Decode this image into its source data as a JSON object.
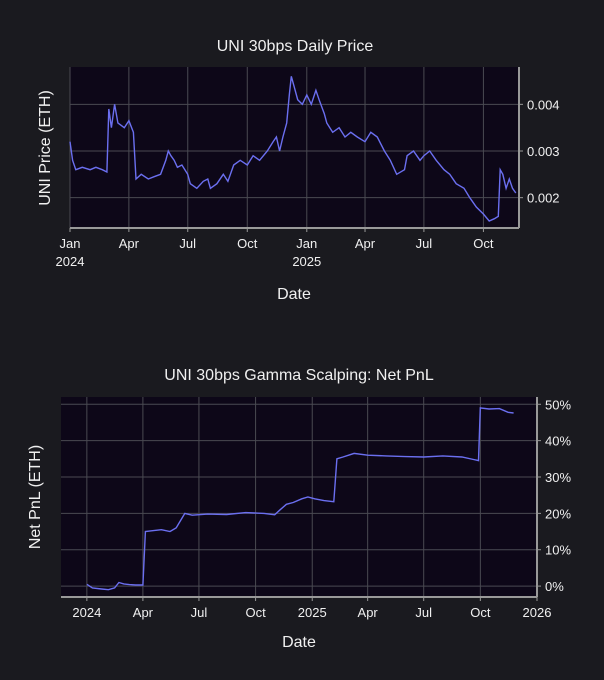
{
  "chart_data": [
    {
      "type": "line",
      "title": "UNI 30bps Daily Price",
      "xlabel": "Date",
      "ylabel": "UNI Price (ETH)",
      "x_tick_labels": [
        {
          "label": "Jan",
          "sub": "2024",
          "date": "2024-01-01"
        },
        {
          "label": "Apr",
          "sub": "",
          "date": "2024-04-01"
        },
        {
          "label": "Jul",
          "sub": "",
          "date": "2024-07-01"
        },
        {
          "label": "Oct",
          "sub": "",
          "date": "2024-10-01"
        },
        {
          "label": "Jan",
          "sub": "2025",
          "date": "2025-01-01"
        },
        {
          "label": "Apr",
          "sub": "",
          "date": "2025-04-01"
        },
        {
          "label": "Jul",
          "sub": "",
          "date": "2025-07-01"
        },
        {
          "label": "Oct",
          "sub": "",
          "date": "2025-10-01"
        }
      ],
      "y_ticks": [
        0.002,
        0.003,
        0.004
      ],
      "y_tick_labels": [
        "0.002",
        "0.003",
        "0.004"
      ],
      "xlim": [
        "2024-01-01",
        "2025-11-25"
      ],
      "ylim": [
        0.00135,
        0.0048
      ],
      "grid": true,
      "series": [
        {
          "color": "#6b6ff0",
          "points": [
            [
              "2024-01-01",
              0.0032
            ],
            [
              "2024-01-05",
              0.0028
            ],
            [
              "2024-01-10",
              0.0026
            ],
            [
              "2024-01-20",
              0.00265
            ],
            [
              "2024-02-01",
              0.0026
            ],
            [
              "2024-02-10",
              0.00265
            ],
            [
              "2024-02-20",
              0.0026
            ],
            [
              "2024-02-27",
              0.00255
            ],
            [
              "2024-03-01",
              0.0039
            ],
            [
              "2024-03-05",
              0.0035
            ],
            [
              "2024-03-10",
              0.004
            ],
            [
              "2024-03-15",
              0.0036
            ],
            [
              "2024-03-25",
              0.0035
            ],
            [
              "2024-04-01",
              0.00365
            ],
            [
              "2024-04-08",
              0.0034
            ],
            [
              "2024-04-12",
              0.0024
            ],
            [
              "2024-04-20",
              0.0025
            ],
            [
              "2024-05-01",
              0.0024
            ],
            [
              "2024-05-10",
              0.00245
            ],
            [
              "2024-05-20",
              0.0025
            ],
            [
              "2024-05-28",
              0.0028
            ],
            [
              "2024-06-01",
              0.003
            ],
            [
              "2024-06-05",
              0.0029
            ],
            [
              "2024-06-10",
              0.0028
            ],
            [
              "2024-06-15",
              0.00265
            ],
            [
              "2024-06-22",
              0.0027
            ],
            [
              "2024-07-01",
              0.0025
            ],
            [
              "2024-07-05",
              0.0023
            ],
            [
              "2024-07-15",
              0.0022
            ],
            [
              "2024-07-25",
              0.00235
            ],
            [
              "2024-08-01",
              0.0024
            ],
            [
              "2024-08-05",
              0.0022
            ],
            [
              "2024-08-15",
              0.0023
            ],
            [
              "2024-08-25",
              0.0025
            ],
            [
              "2024-09-01",
              0.00235
            ],
            [
              "2024-09-10",
              0.0027
            ],
            [
              "2024-09-20",
              0.0028
            ],
            [
              "2024-10-01",
              0.0027
            ],
            [
              "2024-10-10",
              0.0029
            ],
            [
              "2024-10-20",
              0.0028
            ],
            [
              "2024-11-01",
              0.003
            ],
            [
              "2024-11-10",
              0.0032
            ],
            [
              "2024-11-15",
              0.0033
            ],
            [
              "2024-11-20",
              0.003
            ],
            [
              "2024-11-25",
              0.0033
            ],
            [
              "2024-12-01",
              0.0036
            ],
            [
              "2024-12-05",
              0.0042
            ],
            [
              "2024-12-08",
              0.0046
            ],
            [
              "2024-12-12",
              0.0044
            ],
            [
              "2024-12-18",
              0.0041
            ],
            [
              "2024-12-25",
              0.004
            ],
            [
              "2025-01-01",
              0.0042
            ],
            [
              "2025-01-08",
              0.004
            ],
            [
              "2025-01-15",
              0.0043
            ],
            [
              "2025-01-20",
              0.0041
            ],
            [
              "2025-01-28",
              0.0038
            ],
            [
              "2025-02-01",
              0.0036
            ],
            [
              "2025-02-10",
              0.0034
            ],
            [
              "2025-02-20",
              0.0035
            ],
            [
              "2025-03-01",
              0.0033
            ],
            [
              "2025-03-10",
              0.0034
            ],
            [
              "2025-03-20",
              0.0033
            ],
            [
              "2025-04-01",
              0.0032
            ],
            [
              "2025-04-10",
              0.0034
            ],
            [
              "2025-04-20",
              0.0033
            ],
            [
              "2025-05-01",
              0.003
            ],
            [
              "2025-05-10",
              0.0028
            ],
            [
              "2025-05-20",
              0.0025
            ],
            [
              "2025-06-01",
              0.0026
            ],
            [
              "2025-06-05",
              0.0029
            ],
            [
              "2025-06-15",
              0.003
            ],
            [
              "2025-06-25",
              0.0028
            ],
            [
              "2025-07-01",
              0.0029
            ],
            [
              "2025-07-10",
              0.003
            ],
            [
              "2025-07-20",
              0.0028
            ],
            [
              "2025-08-01",
              0.0026
            ],
            [
              "2025-08-10",
              0.0025
            ],
            [
              "2025-08-20",
              0.0023
            ],
            [
              "2025-09-01",
              0.0022
            ],
            [
              "2025-09-10",
              0.002
            ],
            [
              "2025-09-20",
              0.0018
            ],
            [
              "2025-10-01",
              0.00165
            ],
            [
              "2025-10-10",
              0.0015
            ],
            [
              "2025-10-18",
              0.00155
            ],
            [
              "2025-10-24",
              0.0016
            ],
            [
              "2025-10-27",
              0.0026
            ],
            [
              "2025-10-31",
              0.0025
            ],
            [
              "2025-11-05",
              0.0022
            ],
            [
              "2025-11-10",
              0.0024
            ],
            [
              "2025-11-15",
              0.0022
            ],
            [
              "2025-11-20",
              0.0021
            ]
          ]
        }
      ]
    },
    {
      "type": "line",
      "title": "UNI 30bps Gamma Scalping: Net PnL",
      "xlabel": "Date",
      "ylabel": "Net PnL (ETH)",
      "x_tick_labels": [
        {
          "label": "2024",
          "date": "2024-01-01"
        },
        {
          "label": "Apr",
          "date": "2024-04-01"
        },
        {
          "label": "Jul",
          "date": "2024-07-01"
        },
        {
          "label": "Oct",
          "date": "2024-10-01"
        },
        {
          "label": "2025",
          "date": "2025-01-01"
        },
        {
          "label": "Apr",
          "date": "2025-04-01"
        },
        {
          "label": "Jul",
          "date": "2025-07-01"
        },
        {
          "label": "Oct",
          "date": "2025-10-01"
        },
        {
          "label": "2026",
          "date": "2026-01-01"
        }
      ],
      "y_ticks": [
        0,
        10,
        20,
        30,
        40,
        50
      ],
      "y_tick_labels": [
        "0%",
        "10%",
        "20%",
        "30%",
        "40%",
        "50%"
      ],
      "xlim": [
        "2023-11-20",
        "2026-01-01"
      ],
      "ylim": [
        -3,
        52
      ],
      "grid": true,
      "series": [
        {
          "color": "#6b6ff0",
          "points": [
            [
              "2024-01-01",
              0.5
            ],
            [
              "2024-01-10",
              -0.5
            ],
            [
              "2024-01-25",
              -0.8
            ],
            [
              "2024-02-05",
              -1.0
            ],
            [
              "2024-02-15",
              -0.5
            ],
            [
              "2024-02-22",
              1.0
            ],
            [
              "2024-03-01",
              0.6
            ],
            [
              "2024-03-10",
              0.4
            ],
            [
              "2024-03-20",
              0.3
            ],
            [
              "2024-04-01",
              0.3
            ],
            [
              "2024-04-05",
              15.0
            ],
            [
              "2024-04-15",
              15.2
            ],
            [
              "2024-05-01",
              15.5
            ],
            [
              "2024-05-15",
              15.0
            ],
            [
              "2024-05-25",
              16.0
            ],
            [
              "2024-06-01",
              18.0
            ],
            [
              "2024-06-08",
              20.0
            ],
            [
              "2024-06-20",
              19.5
            ],
            [
              "2024-07-15",
              19.8
            ],
            [
              "2024-08-15",
              19.7
            ],
            [
              "2024-09-15",
              20.2
            ],
            [
              "2024-10-15",
              20.0
            ],
            [
              "2024-11-01",
              19.6
            ],
            [
              "2024-11-10",
              21.0
            ],
            [
              "2024-11-20",
              22.5
            ],
            [
              "2024-12-01",
              23.0
            ],
            [
              "2024-12-15",
              24.0
            ],
            [
              "2024-12-25",
              24.5
            ],
            [
              "2025-01-05",
              24.0
            ],
            [
              "2025-01-20",
              23.5
            ],
            [
              "2025-02-05",
              23.2
            ],
            [
              "2025-02-10",
              35.0
            ],
            [
              "2025-02-20",
              35.5
            ],
            [
              "2025-03-10",
              36.5
            ],
            [
              "2025-04-01",
              36.0
            ],
            [
              "2025-05-01",
              35.8
            ],
            [
              "2025-06-01",
              35.6
            ],
            [
              "2025-07-01",
              35.5
            ],
            [
              "2025-08-01",
              35.8
            ],
            [
              "2025-09-01",
              35.5
            ],
            [
              "2025-09-20",
              34.8
            ],
            [
              "2025-09-28",
              34.5
            ],
            [
              "2025-10-01",
              49.0
            ],
            [
              "2025-10-15",
              48.7
            ],
            [
              "2025-11-01",
              48.8
            ],
            [
              "2025-11-15",
              47.8
            ],
            [
              "2025-11-24",
              47.6
            ]
          ]
        }
      ]
    }
  ]
}
